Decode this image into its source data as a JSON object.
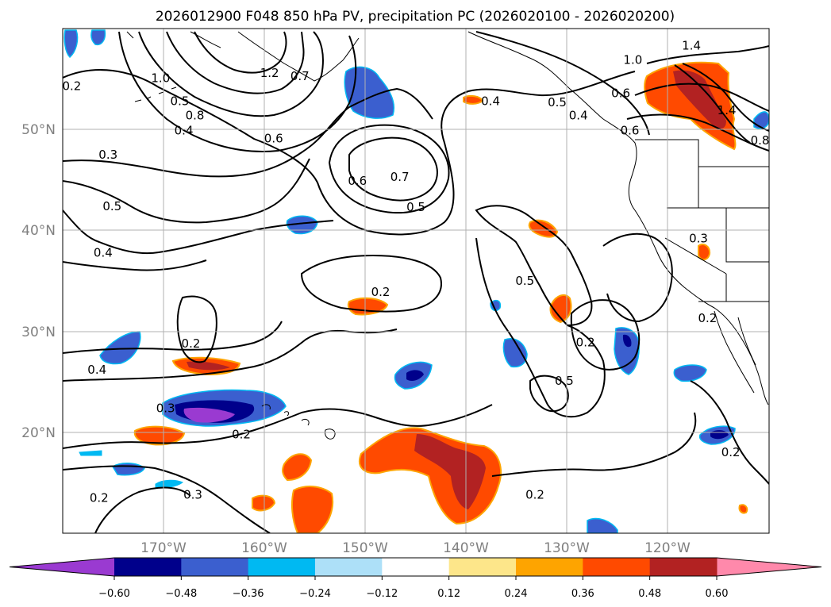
{
  "chart_data": {
    "type": "contour_map",
    "title": "2026012900 F048 850 hPa PV, precipitation PC (2026020100 - 2026020200)",
    "projection": "lat-lon",
    "lon_range": [
      -180,
      -110
    ],
    "lat_range": [
      10,
      60
    ],
    "lon_ticks": [
      -170,
      -160,
      -150,
      -140,
      -130,
      -120
    ],
    "lon_tick_labels": [
      "170°W",
      "160°W",
      "150°W",
      "140°W",
      "130°W",
      "120°W"
    ],
    "lat_ticks": [
      20,
      30,
      40,
      50
    ],
    "lat_tick_labels": [
      "20°N",
      "30°N",
      "40°N",
      "50°N"
    ],
    "grid": true,
    "colorbar": {
      "orientation": "horizontal",
      "extend": "both",
      "levels": [
        -0.6,
        -0.48,
        -0.36,
        -0.24,
        -0.12,
        0.12,
        0.24,
        0.36,
        0.48,
        0.6
      ],
      "tick_labels": [
        "−0.60",
        "−0.48",
        "−0.36",
        "−0.24",
        "−0.12",
        "0.12",
        "0.24",
        "0.36",
        "0.48",
        "0.60"
      ],
      "colors": [
        "#9a3ad1",
        "#00008b",
        "#3b5fcf",
        "#00b9f2",
        "#ade0f8",
        "#ffffff",
        "#fde68a",
        "#fea400",
        "#ff4a00",
        "#b22222",
        "#ff89ab"
      ]
    },
    "contour_labels": [
      {
        "value": "0.2",
        "lon": -179.1,
        "lat": 54.3
      },
      {
        "value": "1.0",
        "lon": -170.3,
        "lat": 55.1
      },
      {
        "value": "1.2",
        "lon": -159.5,
        "lat": 55.6
      },
      {
        "value": "0.7",
        "lon": -156.5,
        "lat": 55.3
      },
      {
        "value": "0.5",
        "lon": -168.4,
        "lat": 52.8
      },
      {
        "value": "0.8",
        "lon": -166.9,
        "lat": 51.4
      },
      {
        "value": "0.4",
        "lon": -168.0,
        "lat": 49.9
      },
      {
        "value": "0.6",
        "lon": -159.1,
        "lat": 49.1
      },
      {
        "value": "0.3",
        "lon": -175.5,
        "lat": 47.5
      },
      {
        "value": "0.6",
        "lon": -150.8,
        "lat": 44.9
      },
      {
        "value": "0.7",
        "lon": -146.6,
        "lat": 45.3
      },
      {
        "value": "0.5",
        "lon": -145.0,
        "lat": 42.3
      },
      {
        "value": "0.5",
        "lon": -175.1,
        "lat": 42.4
      },
      {
        "value": "0.4",
        "lon": -176.0,
        "lat": 37.8
      },
      {
        "value": "0.4",
        "lon": -137.6,
        "lat": 52.8
      },
      {
        "value": "0.5",
        "lon": -131.0,
        "lat": 52.7
      },
      {
        "value": "0.4",
        "lon": -128.9,
        "lat": 51.4
      },
      {
        "value": "1.0",
        "lon": -123.5,
        "lat": 56.9
      },
      {
        "value": "1.4",
        "lon": -117.7,
        "lat": 58.3
      },
      {
        "value": "0.6",
        "lon": -124.7,
        "lat": 53.6
      },
      {
        "value": "0.6",
        "lon": -123.8,
        "lat": 49.9
      },
      {
        "value": "1.4",
        "lon": -114.2,
        "lat": 51.9
      },
      {
        "value": "0.8",
        "lon": -110.9,
        "lat": 48.9
      },
      {
        "value": "0.3",
        "lon": -117.0,
        "lat": 39.2
      },
      {
        "value": "0.5",
        "lon": -134.2,
        "lat": 35.0
      },
      {
        "value": "0.2",
        "lon": -148.5,
        "lat": 33.9
      },
      {
        "value": "0.2",
        "lon": -128.2,
        "lat": 28.9
      },
      {
        "value": "0.5",
        "lon": -130.3,
        "lat": 25.1
      },
      {
        "value": "0.2",
        "lon": -116.1,
        "lat": 31.3
      },
      {
        "value": "0.2",
        "lon": -167.3,
        "lat": 28.8
      },
      {
        "value": "0.4",
        "lon": -176.6,
        "lat": 26.2
      },
      {
        "value": "0.3",
        "lon": -169.8,
        "lat": 22.4
      },
      {
        "value": "0.2",
        "lon": -162.3,
        "lat": 19.8
      },
      {
        "value": "0.2",
        "lon": -113.8,
        "lat": 18.0
      },
      {
        "value": "0.2",
        "lon": -133.2,
        "lat": 13.8
      },
      {
        "value": "0.2",
        "lon": -176.4,
        "lat": 13.5
      },
      {
        "value": "0.3",
        "lon": -167.1,
        "lat": 13.8
      }
    ]
  }
}
